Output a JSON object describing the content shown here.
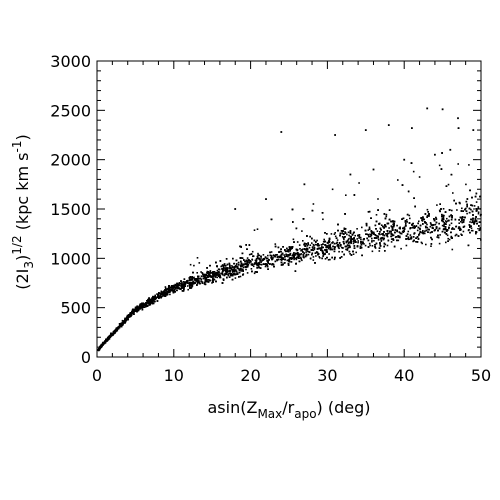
{
  "chart_data": {
    "type": "scatter",
    "title": "",
    "xlabel": {
      "base": "asin(Z",
      "sub1": "Max",
      "mid": "/r",
      "sub2": "apo",
      "tail": ") (deg)"
    },
    "ylabel": {
      "base": "(2I",
      "sub": "3",
      "sup1": ")",
      "sup2": "1/2",
      "mid": " (kpc km s",
      "sup3": "-1",
      "tail": ")"
    },
    "xlim": [
      0,
      50
    ],
    "ylim": [
      0,
      3000
    ],
    "x_ticks": [
      "0",
      "10",
      "20",
      "30",
      "40",
      "50"
    ],
    "y_ticks": [
      "0",
      "500",
      "1000",
      "1500",
      "2000",
      "2500",
      "3000"
    ],
    "grid": false,
    "legend": "none",
    "marker_color": "#000000",
    "trend": {
      "description_values": "dense band following y ~ 215*sqrt(x) for small x, spreading to ~1000-1600 by x=50",
      "anchor_points": [
        {
          "x": 1,
          "y": 150
        },
        {
          "x": 5,
          "y": 480
        },
        {
          "x": 10,
          "y": 700
        },
        {
          "x": 15,
          "y": 820
        },
        {
          "x": 20,
          "y": 940
        },
        {
          "x": 30,
          "y": 1120
        },
        {
          "x": 40,
          "y": 1280
        },
        {
          "x": 50,
          "y": 1420
        }
      ],
      "sparse_outliers": [
        {
          "x": 24,
          "y": 2280
        },
        {
          "x": 31,
          "y": 2250
        },
        {
          "x": 35,
          "y": 2300
        },
        {
          "x": 38,
          "y": 2350
        },
        {
          "x": 41,
          "y": 2320
        },
        {
          "x": 43,
          "y": 2520
        },
        {
          "x": 45,
          "y": 2510
        },
        {
          "x": 47,
          "y": 2420
        },
        {
          "x": 49,
          "y": 2300
        },
        {
          "x": 46,
          "y": 2100
        },
        {
          "x": 44,
          "y": 2050
        },
        {
          "x": 40,
          "y": 2000
        },
        {
          "x": 36,
          "y": 1900
        },
        {
          "x": 33,
          "y": 1850
        },
        {
          "x": 27,
          "y": 1750
        },
        {
          "x": 22,
          "y": 1600
        },
        {
          "x": 18,
          "y": 1500
        }
      ]
    }
  }
}
